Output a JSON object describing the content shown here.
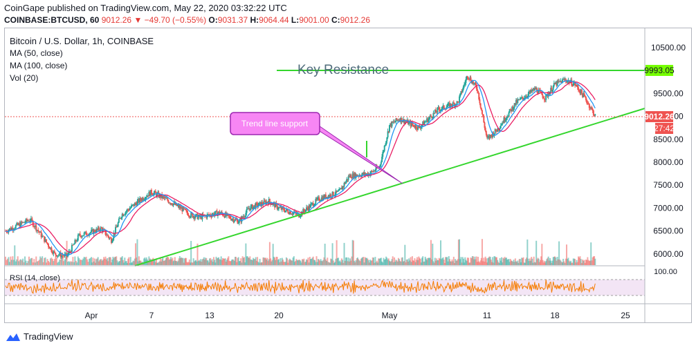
{
  "header": {
    "publisher_line": "CoinGape published on TradingView.com, May 22, 2020 03:32:22 UTC",
    "symbol": "COINBASE:BTCUSD, 60",
    "last": "9012.26",
    "change_icon": "triangle-down-icon",
    "change": "−49.70 (−0.55%)",
    "o_label": "O:",
    "o_value": "9031.37",
    "h_label": "H:",
    "h_value": "9064.44",
    "l_label": "L:",
    "l_value": "9001.00",
    "c_label": "C:",
    "c_value": "9012.26"
  },
  "legend": {
    "title": "Bitcoin / U.S. Dollar, 1h, COINBASE",
    "ma50": "MA (50, close)",
    "ma100": "MA (100, close)",
    "vol": "Vol (20)",
    "rsi": "RSI (14, close)"
  },
  "annotations": {
    "key_resistance": "Key Resistance",
    "trend_support": "Trend line support"
  },
  "price_labels": {
    "resistance": "9993.05",
    "last": "9012.26",
    "countdown": "27:42",
    "rsi_top": "100.00"
  },
  "footer": {
    "brand": "TradingView"
  },
  "colors": {
    "up": "#26a69a",
    "down": "#ef5350",
    "ma50": "#2196f3",
    "ma100": "#e91e63",
    "trendline": "#34d62d",
    "rsi": "#f57c00",
    "callout": "#f786f4",
    "resistance_label": "#76ff03",
    "last_label": "#ef5350"
  },
  "chart_data": {
    "type": "candlestick",
    "title": "Bitcoin / U.S. Dollar, 1h, COINBASE",
    "x_ticks": [
      "Apr",
      "7",
      "13",
      "20",
      "May",
      "11",
      "18",
      "25"
    ],
    "y_ticks": [
      "10500.00",
      "9500.00",
      "9000.00",
      "8500.00",
      "8000.00",
      "7500.00",
      "7000.00",
      "6500.00",
      "6000.00"
    ],
    "ylim": [
      5800,
      10800
    ],
    "price_path": [
      [
        "2020-03-25",
        6500
      ],
      [
        "2020-03-27",
        6750
      ],
      [
        "2020-03-29",
        6000
      ],
      [
        "2020-03-30",
        5950
      ],
      [
        "2020-03-31",
        6400
      ],
      [
        "2020-04-02",
        6550
      ],
      [
        "2020-04-03",
        6300
      ],
      [
        "2020-04-04",
        6850
      ],
      [
        "2020-04-06",
        7200
      ],
      [
        "2020-04-07",
        7350
      ],
      [
        "2020-04-08",
        7250
      ],
      [
        "2020-04-10",
        7000
      ],
      [
        "2020-04-11",
        6850
      ],
      [
        "2020-04-12",
        6800
      ],
      [
        "2020-04-14",
        6900
      ],
      [
        "2020-04-16",
        6700
      ],
      [
        "2020-04-17",
        7000
      ],
      [
        "2020-04-19",
        7150
      ],
      [
        "2020-04-20",
        7000
      ],
      [
        "2020-04-22",
        6850
      ],
      [
        "2020-04-24",
        7200
      ],
      [
        "2020-04-26",
        7350
      ],
      [
        "2020-04-27",
        7700
      ],
      [
        "2020-04-29",
        7750
      ],
      [
        "2020-04-30",
        7900
      ],
      [
        "2020-05-01",
        8800
      ],
      [
        "2020-05-02",
        8950
      ],
      [
        "2020-05-04",
        8750
      ],
      [
        "2020-05-06",
        9150
      ],
      [
        "2020-05-08",
        9300
      ],
      [
        "2020-05-09",
        9900
      ],
      [
        "2020-05-10",
        9600
      ],
      [
        "2020-05-11",
        8500
      ],
      [
        "2020-05-12",
        8700
      ],
      [
        "2020-05-14",
        9300
      ],
      [
        "2020-05-16",
        9600
      ],
      [
        "2020-05-17",
        9400
      ],
      [
        "2020-05-18",
        9700
      ],
      [
        "2020-05-19",
        9800
      ],
      [
        "2020-05-20",
        9700
      ],
      [
        "2020-05-21",
        9400
      ],
      [
        "2020-05-22",
        9012.26
      ]
    ],
    "lines": [
      {
        "name": "Key Resistance",
        "type": "horizontal",
        "y": 9993.05
      },
      {
        "name": "Trend line support",
        "type": "diagonal",
        "points": [
          [
            "2020-04-05",
            5850
          ],
          [
            "2020-05-03",
            7520
          ],
          [
            "2020-05-23",
            9200
          ]
        ]
      }
    ],
    "rsi": {
      "name": "RSI (14, close)",
      "levels": [
        70,
        30
      ],
      "top_label": "100.00"
    }
  }
}
